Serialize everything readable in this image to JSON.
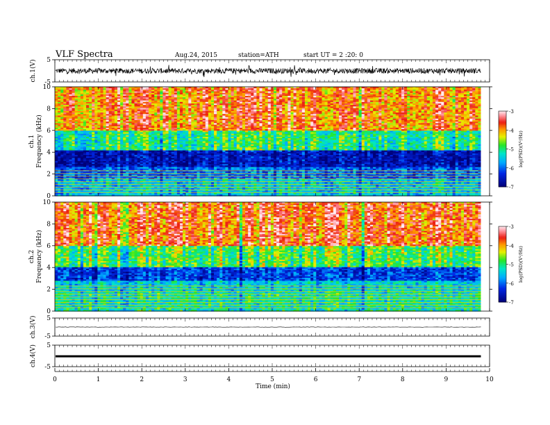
{
  "header": {
    "title": "VLF  Spectra",
    "date": "Aug.24, 2015",
    "station": "station=ATH",
    "start": "start  UT =  2  :20: 0"
  },
  "chart_data": [
    {
      "type": "line",
      "panel": "ch1-waveform",
      "ylabel": "ch.1(V)",
      "ylim": [
        -5,
        5
      ],
      "yticks": [
        "5",
        "-5"
      ],
      "xlim": [
        0,
        10
      ],
      "description_values": {
        "mean": 0,
        "typical_range": [
          -1.2,
          1.2
        ]
      }
    },
    {
      "type": "heatmap",
      "panel": "ch1-spectrogram",
      "ylabel_top": "ch.1",
      "ylabel": "Frequency  (kHz)",
      "ylim": [
        0,
        10
      ],
      "yticks": [
        "0",
        "2",
        "4",
        "6",
        "8",
        "10"
      ],
      "xlim": [
        0,
        9.8
      ],
      "colorbar": {
        "label": "log(PSD)(V²/Hz)",
        "range": [
          -7,
          -3
        ],
        "ticks": [
          "-3",
          "-4",
          "-5",
          "-6",
          "-7"
        ]
      },
      "bands": [
        {
          "f": [
            0,
            1.5
          ],
          "level": -5.5
        },
        {
          "f": [
            1.5,
            2.6
          ],
          "level": -6.0
        },
        {
          "f": [
            2.6,
            4.2
          ],
          "level": -6.6
        },
        {
          "f": [
            4.2,
            6.0
          ],
          "level": -5.0
        },
        {
          "f": [
            6.0,
            10.0
          ],
          "level": -3.8
        }
      ]
    },
    {
      "type": "heatmap",
      "panel": "ch2-spectrogram",
      "ylabel_top": "ch.2",
      "ylabel": "Frequency  (kHz)",
      "ylim": [
        0,
        10
      ],
      "yticks": [
        "0",
        "2",
        "4",
        "6",
        "8",
        "10"
      ],
      "xlim": [
        0,
        9.8
      ],
      "colorbar": {
        "label": "log(PSD)(V²/Hz)",
        "range": [
          -7,
          -3
        ],
        "ticks": [
          "-3",
          "-4",
          "-5",
          "-6",
          "-7"
        ]
      },
      "bands": [
        {
          "f": [
            0,
            1.8
          ],
          "level": -5.2
        },
        {
          "f": [
            1.8,
            2.8
          ],
          "level": -5.4
        },
        {
          "f": [
            2.8,
            4.0
          ],
          "level": -6.2
        },
        {
          "f": [
            4.0,
            6.0
          ],
          "level": -4.8
        },
        {
          "f": [
            6.0,
            10.0
          ],
          "level": -3.7
        }
      ]
    },
    {
      "type": "line",
      "panel": "ch3-waveform",
      "ylabel": "ch.3(V)",
      "ylim": [
        -5,
        5
      ],
      "yticks": [
        "5",
        "-5"
      ],
      "xlim": [
        0,
        10
      ],
      "description_values": {
        "mean": 0,
        "typical_range": [
          -0.1,
          0.1
        ]
      }
    },
    {
      "type": "line",
      "panel": "ch4-waveform",
      "ylabel": "ch.4(V)",
      "ylim": [
        -5,
        5
      ],
      "yticks": [
        "5",
        "-5"
      ],
      "xlim": [
        0,
        10
      ],
      "description_values": {
        "mean": 0,
        "typical_range": [
          -0.3,
          0.3
        ]
      }
    }
  ],
  "xaxis": {
    "label": "Time  (min)",
    "ticks": [
      "0",
      "1",
      "2",
      "3",
      "4",
      "5",
      "6",
      "7",
      "8",
      "9",
      "10"
    ]
  }
}
